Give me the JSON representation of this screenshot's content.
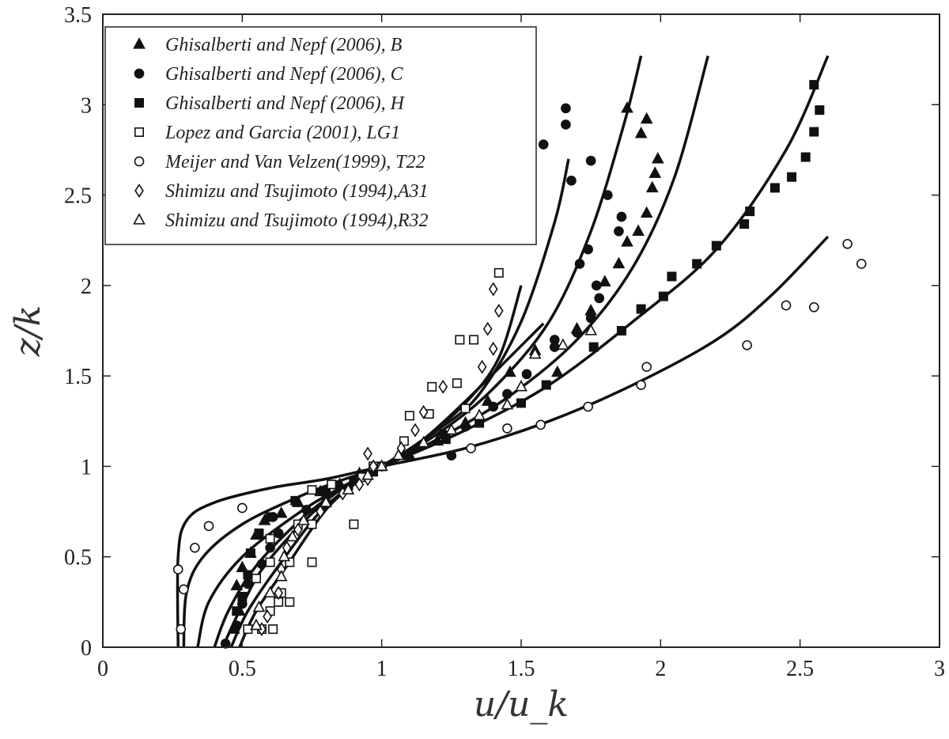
{
  "chart_data": {
    "type": "scatter",
    "title": "",
    "xlabel": "u/u_k",
    "ylabel": "z/k",
    "xlim": [
      0,
      3
    ],
    "ylim": [
      0,
      3.5
    ],
    "xticks": [
      0,
      0.5,
      1,
      1.5,
      2,
      2.5,
      3
    ],
    "yticks": [
      0,
      0.5,
      1,
      1.5,
      2,
      2.5,
      3,
      3.5
    ],
    "xtick_labels": [
      "0",
      "0.5",
      "1",
      "1.5",
      "2",
      "2.5",
      "3"
    ],
    "ytick_labels": [
      "0",
      "0.5",
      "1",
      "1.5",
      "2",
      "2.5",
      "3",
      "3.5"
    ],
    "grid": false,
    "legend_position": "top-left",
    "series": [
      {
        "name": "Ghisalberti and Nepf (2006), B",
        "marker": "triangle-filled",
        "points": [
          [
            0.47,
            0.1
          ],
          [
            0.49,
            0.2
          ],
          [
            0.48,
            0.34
          ],
          [
            0.5,
            0.44
          ],
          [
            0.53,
            0.52
          ],
          [
            0.55,
            0.62
          ],
          [
            0.58,
            0.7
          ],
          [
            0.64,
            0.74
          ],
          [
            0.7,
            0.8
          ],
          [
            0.78,
            0.86
          ],
          [
            0.85,
            0.9
          ],
          [
            0.92,
            0.96
          ],
          [
            1.0,
            1.0
          ],
          [
            1.1,
            1.06
          ],
          [
            1.2,
            1.14
          ],
          [
            1.3,
            1.24
          ],
          [
            1.38,
            1.36
          ],
          [
            1.46,
            1.52
          ],
          [
            1.55,
            1.64
          ],
          [
            1.63,
            1.52
          ],
          [
            1.7,
            1.76
          ],
          [
            1.75,
            1.86
          ],
          [
            1.8,
            2.02
          ],
          [
            1.85,
            2.12
          ],
          [
            1.88,
            2.24
          ],
          [
            1.92,
            2.3
          ],
          [
            1.95,
            2.4
          ],
          [
            1.97,
            2.54
          ],
          [
            1.98,
            2.62
          ],
          [
            1.99,
            2.7
          ],
          [
            1.93,
            2.84
          ],
          [
            1.95,
            2.92
          ],
          [
            1.88,
            2.98
          ]
        ]
      },
      {
        "name": "Ghisalberti and Nepf (2006), C",
        "marker": "circle-filled",
        "points": [
          [
            0.44,
            0.02
          ],
          [
            0.48,
            0.12
          ],
          [
            0.5,
            0.24
          ],
          [
            0.52,
            0.35
          ],
          [
            0.57,
            0.46
          ],
          [
            0.6,
            0.55
          ],
          [
            0.63,
            0.63
          ],
          [
            0.61,
            0.72
          ],
          [
            0.73,
            0.76
          ],
          [
            0.8,
            0.8
          ],
          [
            0.88,
            0.88
          ],
          [
            0.95,
            0.95
          ],
          [
            1.0,
            1.0
          ],
          [
            1.25,
            1.06
          ],
          [
            1.22,
            1.18
          ],
          [
            1.3,
            1.22
          ],
          [
            1.4,
            1.33
          ],
          [
            1.45,
            1.4
          ],
          [
            1.52,
            1.51
          ],
          [
            1.62,
            1.66
          ],
          [
            1.62,
            1.7
          ],
          [
            1.7,
            1.74
          ],
          [
            1.75,
            1.82
          ],
          [
            1.78,
            1.93
          ],
          [
            1.77,
            2.0
          ],
          [
            1.74,
            2.2
          ],
          [
            1.71,
            2.12
          ],
          [
            1.85,
            2.3
          ],
          [
            1.86,
            2.38
          ],
          [
            1.81,
            2.5
          ],
          [
            1.68,
            2.58
          ],
          [
            1.75,
            2.69
          ],
          [
            1.58,
            2.78
          ],
          [
            1.66,
            2.89
          ],
          [
            1.66,
            2.98
          ]
        ]
      },
      {
        "name": "Ghisalberti and Nepf (2006), H",
        "marker": "square-filled",
        "points": [
          [
            0.48,
            0.2
          ],
          [
            0.5,
            0.28
          ],
          [
            0.52,
            0.4
          ],
          [
            0.53,
            0.52
          ],
          [
            0.56,
            0.63
          ],
          [
            0.6,
            0.72
          ],
          [
            0.69,
            0.81
          ],
          [
            0.8,
            0.86
          ],
          [
            0.9,
            0.92
          ],
          [
            0.97,
            0.97
          ],
          [
            1.0,
            1.0
          ],
          [
            1.23,
            1.15
          ],
          [
            1.35,
            1.24
          ],
          [
            1.5,
            1.35
          ],
          [
            1.59,
            1.45
          ],
          [
            1.76,
            1.66
          ],
          [
            1.86,
            1.75
          ],
          [
            1.93,
            1.87
          ],
          [
            2.01,
            1.94
          ],
          [
            2.04,
            2.05
          ],
          [
            2.13,
            2.12
          ],
          [
            2.2,
            2.22
          ],
          [
            2.3,
            2.34
          ],
          [
            2.32,
            2.41
          ],
          [
            2.41,
            2.54
          ],
          [
            2.47,
            2.6
          ],
          [
            2.52,
            2.71
          ],
          [
            2.55,
            2.85
          ],
          [
            2.57,
            2.97
          ],
          [
            2.55,
            3.11
          ]
        ]
      },
      {
        "name": "Lopez and Garcia (2001), LG1",
        "marker": "square-open",
        "points": [
          [
            0.52,
            0.1
          ],
          [
            0.57,
            0.1
          ],
          [
            0.61,
            0.1
          ],
          [
            0.6,
            0.2
          ],
          [
            0.63,
            0.25
          ],
          [
            0.67,
            0.25
          ],
          [
            0.64,
            0.3
          ],
          [
            0.55,
            0.38
          ],
          [
            0.6,
            0.47
          ],
          [
            0.67,
            0.47
          ],
          [
            0.75,
            0.47
          ],
          [
            0.6,
            0.6
          ],
          [
            0.7,
            0.68
          ],
          [
            0.75,
            0.68
          ],
          [
            0.9,
            0.68
          ],
          [
            0.75,
            0.87
          ],
          [
            0.82,
            0.9
          ],
          [
            0.93,
            0.94
          ],
          [
            0.97,
            1.0
          ],
          [
            1.0,
            1.0
          ],
          [
            1.08,
            1.14
          ],
          [
            1.1,
            1.28
          ],
          [
            1.17,
            1.29
          ],
          [
            1.18,
            1.44
          ],
          [
            1.3,
            1.32
          ],
          [
            1.27,
            1.46
          ],
          [
            1.28,
            1.7
          ],
          [
            1.33,
            1.7
          ],
          [
            1.42,
            2.07
          ]
        ]
      },
      {
        "name": "Meijer and Van Velzen(1999), T22",
        "marker": "circle-open",
        "points": [
          [
            0.28,
            0.1
          ],
          [
            0.29,
            0.32
          ],
          [
            0.27,
            0.43
          ],
          [
            0.33,
            0.55
          ],
          [
            0.38,
            0.67
          ],
          [
            0.5,
            0.77
          ],
          [
            1.0,
            1.0
          ],
          [
            1.32,
            1.1
          ],
          [
            1.45,
            1.21
          ],
          [
            1.57,
            1.23
          ],
          [
            1.74,
            1.33
          ],
          [
            1.93,
            1.45
          ],
          [
            1.95,
            1.55
          ],
          [
            2.31,
            1.67
          ],
          [
            2.45,
            1.89
          ],
          [
            2.55,
            1.88
          ],
          [
            2.67,
            2.23
          ],
          [
            2.72,
            2.12
          ]
        ]
      },
      {
        "name": "Shimizu and Tsujimoto (1994),A31",
        "marker": "diamond-open",
        "points": [
          [
            0.57,
            0.1
          ],
          [
            0.59,
            0.17
          ],
          [
            0.63,
            0.3
          ],
          [
            0.64,
            0.43
          ],
          [
            0.66,
            0.55
          ],
          [
            0.7,
            0.65
          ],
          [
            0.78,
            0.75
          ],
          [
            0.86,
            0.85
          ],
          [
            0.92,
            0.9
          ],
          [
            0.95,
            0.93
          ],
          [
            0.95,
            1.07
          ],
          [
            0.97,
            1.0
          ],
          [
            1.07,
            1.1
          ],
          [
            1.12,
            1.2
          ],
          [
            1.15,
            1.3
          ],
          [
            1.22,
            1.44
          ],
          [
            1.36,
            1.55
          ],
          [
            1.4,
            1.65
          ],
          [
            1.38,
            1.76
          ],
          [
            1.42,
            1.86
          ],
          [
            1.4,
            1.98
          ]
        ]
      },
      {
        "name": "Shimizu and Tsujimoto (1994),R32",
        "marker": "triangle-open",
        "points": [
          [
            0.55,
            0.12
          ],
          [
            0.56,
            0.22
          ],
          [
            0.6,
            0.3
          ],
          [
            0.64,
            0.39
          ],
          [
            0.65,
            0.5
          ],
          [
            0.68,
            0.61
          ],
          [
            0.72,
            0.7
          ],
          [
            0.8,
            0.8
          ],
          [
            0.88,
            0.87
          ],
          [
            0.95,
            0.95
          ],
          [
            1.0,
            1.0
          ],
          [
            1.06,
            1.06
          ],
          [
            1.15,
            1.13
          ],
          [
            1.25,
            1.2
          ],
          [
            1.35,
            1.28
          ],
          [
            1.45,
            1.34
          ],
          [
            1.5,
            1.44
          ],
          [
            1.55,
            1.62
          ],
          [
            1.65,
            1.67
          ],
          [
            1.75,
            1.75
          ]
        ]
      }
    ],
    "curves": [
      {
        "points": [
          [
            0.27,
            0
          ],
          [
            0.27,
            0.5
          ],
          [
            0.3,
            0.7
          ],
          [
            0.4,
            0.8
          ],
          [
            0.6,
            0.88
          ],
          [
            0.8,
            0.93
          ],
          [
            1.0,
            1.0
          ],
          [
            1.3,
            1.1
          ],
          [
            1.6,
            1.25
          ],
          [
            1.9,
            1.45
          ],
          [
            2.2,
            1.7
          ],
          [
            2.4,
            1.95
          ],
          [
            2.6,
            2.27
          ]
        ]
      },
      {
        "points": [
          [
            0.29,
            0
          ],
          [
            0.3,
            0.3
          ],
          [
            0.36,
            0.5
          ],
          [
            0.5,
            0.68
          ],
          [
            0.7,
            0.83
          ],
          [
            0.85,
            0.92
          ],
          [
            1.0,
            1.0
          ],
          [
            1.3,
            1.2
          ],
          [
            1.6,
            1.45
          ],
          [
            1.9,
            1.8
          ],
          [
            2.2,
            2.2
          ],
          [
            2.45,
            2.75
          ],
          [
            2.6,
            3.27
          ]
        ]
      },
      {
        "points": [
          [
            0.34,
            0
          ],
          [
            0.38,
            0.25
          ],
          [
            0.5,
            0.5
          ],
          [
            0.7,
            0.74
          ],
          [
            0.85,
            0.88
          ],
          [
            1.0,
            1.0
          ],
          [
            1.2,
            1.15
          ],
          [
            1.45,
            1.38
          ],
          [
            1.7,
            1.7
          ],
          [
            1.9,
            2.1
          ],
          [
            2.05,
            2.6
          ],
          [
            2.17,
            3.27
          ]
        ]
      },
      {
        "points": [
          [
            0.4,
            0
          ],
          [
            0.45,
            0.2
          ],
          [
            0.55,
            0.45
          ],
          [
            0.72,
            0.72
          ],
          [
            0.87,
            0.89
          ],
          [
            1.0,
            1.0
          ],
          [
            1.2,
            1.18
          ],
          [
            1.4,
            1.43
          ],
          [
            1.6,
            1.8
          ],
          [
            1.75,
            2.3
          ],
          [
            1.87,
            2.9
          ],
          [
            1.93,
            3.27
          ]
        ]
      },
      {
        "points": [
          [
            0.43,
            0
          ],
          [
            0.49,
            0.2
          ],
          [
            0.58,
            0.45
          ],
          [
            0.75,
            0.74
          ],
          [
            0.88,
            0.9
          ],
          [
            1.0,
            1.0
          ],
          [
            1.2,
            1.2
          ],
          [
            1.35,
            1.4
          ],
          [
            1.5,
            1.8
          ],
          [
            1.62,
            2.35
          ],
          [
            1.67,
            2.7
          ]
        ]
      },
      {
        "points": [
          [
            0.46,
            0
          ],
          [
            0.52,
            0.2
          ],
          [
            0.63,
            0.45
          ],
          [
            0.78,
            0.75
          ],
          [
            0.9,
            0.9
          ],
          [
            1.0,
            1.0
          ],
          [
            1.15,
            1.15
          ],
          [
            1.3,
            1.35
          ],
          [
            1.42,
            1.6
          ],
          [
            1.5,
            2.0
          ]
        ]
      },
      {
        "points": [
          [
            0.49,
            0
          ],
          [
            0.55,
            0.2
          ],
          [
            0.66,
            0.45
          ],
          [
            0.8,
            0.76
          ],
          [
            0.91,
            0.91
          ],
          [
            1.0,
            1.0
          ],
          [
            1.15,
            1.15
          ],
          [
            1.3,
            1.36
          ],
          [
            1.45,
            1.59
          ],
          [
            1.58,
            1.79
          ]
        ]
      }
    ]
  }
}
